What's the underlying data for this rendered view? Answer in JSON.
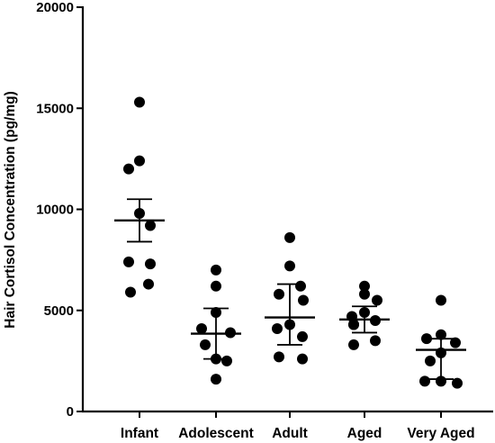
{
  "chart_data": {
    "type": "scatter",
    "ylabel": "Hair Cortisol Concentration (pg/mg)",
    "xlabel": "",
    "ylim": [
      0,
      20000
    ],
    "yticks": [
      0,
      5000,
      10000,
      15000,
      20000
    ],
    "categories": [
      "Infant",
      "Adolescent",
      "Adult",
      "Aged",
      "Very Aged"
    ],
    "series": [
      {
        "category": "Infant",
        "points": [
          15300,
          12400,
          12000,
          9800,
          9200,
          7400,
          7300,
          6300,
          5900
        ],
        "mean": 9450,
        "error": [
          8400,
          10500
        ]
      },
      {
        "category": "Adolescent",
        "points": [
          7000,
          6200,
          4900,
          4100,
          3900,
          3300,
          2600,
          2500,
          1600
        ],
        "mean": 3850,
        "error": [
          2600,
          5100
        ]
      },
      {
        "category": "Adult",
        "points": [
          8600,
          7200,
          6200,
          5800,
          5500,
          4300,
          4100,
          3700,
          2700,
          2600
        ],
        "mean": 4650,
        "error": [
          3300,
          6300
        ]
      },
      {
        "category": "Aged",
        "points": [
          6200,
          5800,
          5500,
          4900,
          4700,
          4500,
          4300,
          4300,
          3500,
          3300
        ],
        "mean": 4550,
        "error": [
          3900,
          5200
        ]
      },
      {
        "category": "Very Aged",
        "points": [
          5500,
          3800,
          3600,
          3400,
          2900,
          2500,
          1500,
          1500,
          1400
        ],
        "mean": 3050,
        "error": [
          1600,
          3600
        ]
      }
    ]
  }
}
